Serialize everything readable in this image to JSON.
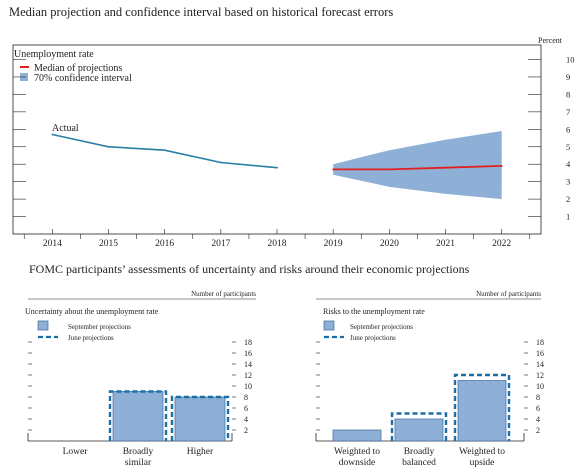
{
  "figure": {
    "top_title": "Median projection and confidence interval based on historical forecast errors",
    "bottom_title": "FOMC participants’ assessments of uncertainty and risks around their economic projections"
  },
  "chart_data": [
    {
      "type": "line",
      "title": "Unemployment rate",
      "unit_label": "Percent",
      "x_ticks": [
        "2014",
        "2015",
        "2016",
        "2017",
        "2018",
        "2019",
        "2020",
        "2021",
        "2022"
      ],
      "ylim": [
        0,
        11
      ],
      "y_ticks": [
        1,
        2,
        3,
        4,
        5,
        6,
        7,
        8,
        9,
        10
      ],
      "legend": [
        "Median of projections",
        "70% confidence interval"
      ],
      "annotation": "Actual",
      "series": [
        {
          "name": "Actual",
          "x": [
            2014,
            2015,
            2016,
            2017,
            2018
          ],
          "values": [
            5.7,
            5.0,
            4.8,
            4.1,
            3.8
          ],
          "color": "#2a7fa5"
        },
        {
          "name": "Median of projections",
          "x": [
            2019,
            2020,
            2021,
            2022
          ],
          "values": [
            3.7,
            3.7,
            3.8,
            3.9
          ],
          "color": "#e02020"
        },
        {
          "name": "70% confidence interval",
          "x": [
            2019,
            2020,
            2021,
            2022
          ],
          "lower": [
            3.4,
            2.7,
            2.3,
            2.0
          ],
          "upper": [
            4.0,
            4.8,
            5.4,
            5.9
          ],
          "color": "#8fb0d6"
        }
      ]
    },
    {
      "type": "bar",
      "title": "Uncertainty about the unemployment rate",
      "unit_label": "Number of participants",
      "categories": [
        "Lower",
        "Broadly\nsimilar",
        "Higher"
      ],
      "ylim": [
        0,
        18
      ],
      "y_ticks": [
        2,
        4,
        6,
        8,
        10,
        12,
        14,
        16,
        18
      ],
      "legend": [
        "September projections",
        "June projections"
      ],
      "series": [
        {
          "name": "September projections",
          "values": [
            0,
            9,
            8
          ],
          "color": "#8fb0d6"
        },
        {
          "name": "June projections",
          "values": [
            0,
            9,
            8
          ],
          "color": "#1a6fa8"
        }
      ]
    },
    {
      "type": "bar",
      "title": "Risks to the unemployment rate",
      "unit_label": "Number of participants",
      "categories": [
        "Weighted to\ndownside",
        "Broadly\nbalanced",
        "Weighted to\nupside"
      ],
      "ylim": [
        0,
        18
      ],
      "y_ticks": [
        2,
        4,
        6,
        8,
        10,
        12,
        14,
        16,
        18
      ],
      "legend": [
        "September projections",
        "June projections"
      ],
      "series": [
        {
          "name": "September projections",
          "values": [
            2,
            4,
            11
          ],
          "color": "#8fb0d6"
        },
        {
          "name": "June projections",
          "values": [
            0,
            5,
            12
          ],
          "color": "#1a6fa8"
        }
      ]
    }
  ]
}
